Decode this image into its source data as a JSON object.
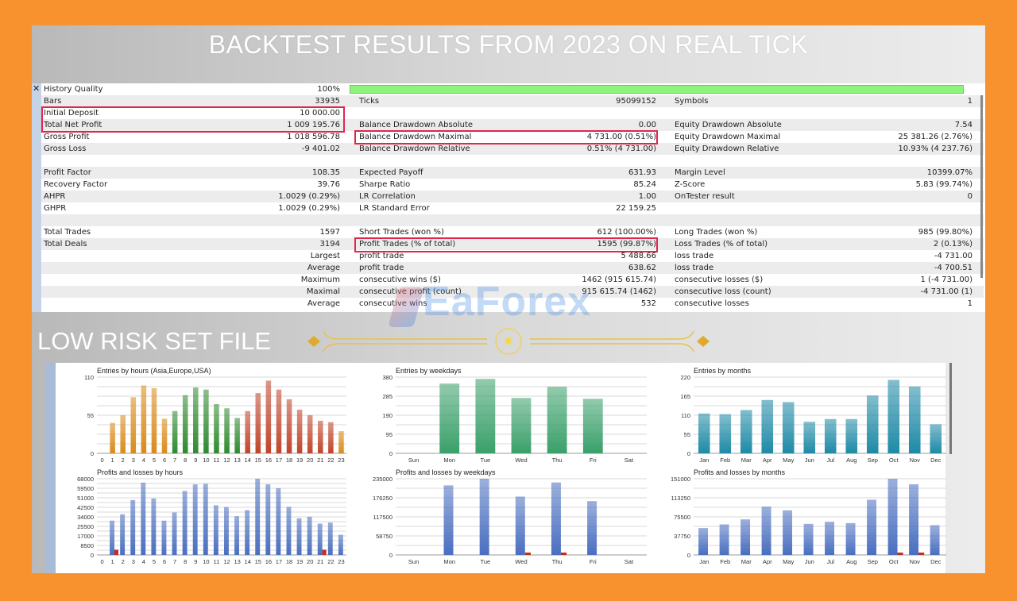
{
  "title": "BACKTEST RESULTS FROM 2023 ON REAL TICK",
  "section_label": "LOW RISK SET FILE",
  "watermark": "EaForex",
  "history_quality": {
    "label": "History Quality",
    "value": "100%",
    "fill_percent": 100
  },
  "rows": [
    {
      "l1": "History Quality",
      "v1": "100%"
    },
    {
      "l1": "Bars",
      "v1": "33935",
      "l2": "Ticks",
      "v2": "95099152",
      "l3": "Symbols",
      "v3": "1"
    },
    {
      "l1": "Initial Deposit",
      "v1": "10 000.00"
    },
    {
      "l1": "Total Net Profit",
      "v1": "1 009 195.76",
      "l2": "Balance Drawdown Absolute",
      "v2": "0.00",
      "l3": "Equity Drawdown Absolute",
      "v3": "7.54"
    },
    {
      "l1": "Gross Profit",
      "v1": "1 018 596.78",
      "l2": "Balance Drawdown Maximal",
      "v2": "4 731.00 (0.51%)",
      "l3": "Equity Drawdown Maximal",
      "v3": "25 381.26 (2.76%)"
    },
    {
      "l1": "Gross Loss",
      "v1": "-9 401.02",
      "l2": "Balance Drawdown Relative",
      "v2": "0.51% (4 731.00)",
      "l3": "Equity Drawdown Relative",
      "v3": "10.93% (4 237.76)"
    },
    {},
    {
      "l1": "Profit Factor",
      "v1": "108.35",
      "l2": "Expected Payoff",
      "v2": "631.93",
      "l3": "Margin Level",
      "v3": "10399.07%"
    },
    {
      "l1": "Recovery Factor",
      "v1": "39.76",
      "l2": "Sharpe Ratio",
      "v2": "85.24",
      "l3": "Z-Score",
      "v3": "5.83 (99.74%)"
    },
    {
      "l1": "AHPR",
      "v1": "1.0029 (0.29%)",
      "l2": "LR Correlation",
      "v2": "1.00",
      "l3": "OnTester result",
      "v3": "0"
    },
    {
      "l1": "GHPR",
      "v1": "1.0029 (0.29%)",
      "l2": "LR Standard Error",
      "v2": "22 159.25"
    },
    {},
    {
      "l1": "Total Trades",
      "v1": "1597",
      "l2": "Short Trades (won %)",
      "v2": "612 (100.00%)",
      "l3": "Long Trades (won %)",
      "v3": "985 (99.80%)"
    },
    {
      "l1": "Total Deals",
      "v1": "3194",
      "l2": "Profit Trades (% of total)",
      "v2": "1595 (99.87%)",
      "l3": "Loss Trades (% of total)",
      "v3": "2 (0.13%)"
    },
    {
      "v1": "Largest",
      "l2": "profit trade",
      "v2": "5 488.66",
      "l3": "loss trade",
      "v3": "-4 731.00"
    },
    {
      "v1": "Average",
      "l2": "profit trade",
      "v2": "638.62",
      "l3": "loss trade",
      "v3": "-4 700.51"
    },
    {
      "v1": "Maximum",
      "l2": "consecutive wins ($)",
      "v2": "1462 (915 615.74)",
      "l3": "consecutive losses ($)",
      "v3": "1 (-4 731.00)"
    },
    {
      "v1": "Maximal",
      "l2": "consecutive profit (count)",
      "v2": "915 615.74 (1462)",
      "l3": "consecutive loss (count)",
      "v3": "-4 731.00 (1)"
    },
    {
      "v1": "Average",
      "l2": "consecutive wins",
      "v2": "532",
      "l3": "consecutive losses",
      "v3": "1"
    }
  ],
  "colors": {
    "frame": "#f7922e",
    "highlight": "#e0264d",
    "quality_bar": "#8ef37a",
    "profit": "#4a6fc0",
    "loss": "#c0301c"
  },
  "chart_data": [
    {
      "type": "bar",
      "title": "Entries by hours (Asia,Europe,USA)",
      "categories": [
        "0",
        "1",
        "2",
        "3",
        "4",
        "5",
        "6",
        "7",
        "8",
        "9",
        "10",
        "11",
        "12",
        "13",
        "14",
        "15",
        "16",
        "17",
        "18",
        "19",
        "20",
        "21",
        "22",
        "23"
      ],
      "ylim": [
        0,
        110
      ],
      "yticks": [
        "0",
        "55",
        "110"
      ],
      "series": [
        {
          "name": "entries",
          "values": [
            0,
            44,
            55,
            81,
            98,
            94,
            50,
            61,
            84,
            95,
            92,
            71,
            65,
            51,
            61,
            87,
            105,
            92,
            78,
            63,
            55,
            47,
            45,
            32
          ],
          "colors": [
            "#d98b1a",
            "#d98b1a",
            "#d98b1a",
            "#d98b1a",
            "#d98b1a",
            "#d98b1a",
            "#d98b1a",
            "#2e8a2e",
            "#2e8a2e",
            "#2e8a2e",
            "#2e8a2e",
            "#2e8a2e",
            "#2e8a2e",
            "#2e8a2e",
            "#c0442a",
            "#c0442a",
            "#c0442a",
            "#c0442a",
            "#c0442a",
            "#c0442a",
            "#c0442a",
            "#c0442a",
            "#c0442a",
            "#d98b1a"
          ]
        }
      ]
    },
    {
      "type": "bar",
      "title": "Entries by weekdays",
      "categories": [
        "Sun",
        "Mon",
        "Tue",
        "Wed",
        "Thu",
        "Fri",
        "Sat"
      ],
      "ylim": [
        0,
        380
      ],
      "yticks": [
        "0",
        "95",
        "190",
        "285",
        "380"
      ],
      "series": [
        {
          "name": "entries",
          "values": [
            0,
            348,
            371,
            276,
            332,
            272,
            0
          ],
          "color": "#3aa06a"
        }
      ]
    },
    {
      "type": "bar",
      "title": "Entries by months",
      "categories": [
        "Jan",
        "Feb",
        "Mar",
        "Apr",
        "May",
        "Jun",
        "Jul",
        "Aug",
        "Sep",
        "Oct",
        "Nov",
        "Dec"
      ],
      "ylim": [
        0,
        220
      ],
      "yticks": [
        "0",
        "55",
        "110",
        "165",
        "220"
      ],
      "series": [
        {
          "name": "entries",
          "values": [
            115,
            113,
            125,
            154,
            148,
            91,
            99,
            99,
            167,
            212,
            193,
            84
          ],
          "color": "#1e8aa6"
        }
      ]
    },
    {
      "type": "bar",
      "title": "Profits and losses by hours",
      "categories": [
        "0",
        "1",
        "2",
        "3",
        "4",
        "5",
        "6",
        "7",
        "8",
        "9",
        "10",
        "11",
        "12",
        "13",
        "14",
        "15",
        "16",
        "17",
        "18",
        "19",
        "20",
        "21",
        "22",
        "23"
      ],
      "ylim": [
        0,
        68000
      ],
      "yticks": [
        "0",
        "8500",
        "17000",
        "25500",
        "34000",
        "42500",
        "51000",
        "59500",
        "68000"
      ],
      "series": [
        {
          "name": "profits",
          "color": "#4a6fc0",
          "values": [
            0,
            30600,
            36300,
            49000,
            64500,
            50400,
            30600,
            37900,
            57100,
            63000,
            63500,
            44300,
            42700,
            34600,
            40000,
            68000,
            63000,
            59500,
            42900,
            32700,
            34100,
            28000,
            28900,
            18000
          ]
        },
        {
          "name": "losses",
          "color": "#c0301c",
          "values": [
            0,
            4700,
            0,
            0,
            0,
            0,
            0,
            0,
            0,
            0,
            0,
            0,
            0,
            0,
            0,
            0,
            0,
            0,
            0,
            0,
            0,
            4700,
            0,
            0
          ]
        }
      ]
    },
    {
      "type": "bar",
      "title": "Profits and losses by weekdays",
      "categories": [
        "Sun",
        "Mon",
        "Tue",
        "Wed",
        "Thu",
        "Fri",
        "Sat"
      ],
      "ylim": [
        0,
        235000
      ],
      "yticks": [
        "0",
        "58750",
        "117500",
        "176250",
        "235000"
      ],
      "series": [
        {
          "name": "profits",
          "color": "#4a6fc0",
          "values": [
            0,
            214500,
            235000,
            180000,
            223500,
            166000,
            0
          ]
        },
        {
          "name": "losses",
          "color": "#c0301c",
          "values": [
            0,
            0,
            0,
            4700,
            4700,
            0,
            0
          ]
        }
      ]
    },
    {
      "type": "bar",
      "title": "Profits and losses by months",
      "categories": [
        "Jan",
        "Feb",
        "Mar",
        "Apr",
        "May",
        "Jun",
        "Jul",
        "Aug",
        "Sep",
        "Oct",
        "Nov",
        "Dec"
      ],
      "ylim": [
        0,
        151000
      ],
      "yticks": [
        "0",
        "37750",
        "75500",
        "113250",
        "151000"
      ],
      "series": [
        {
          "name": "profits",
          "color": "#4a6fc0",
          "values": [
            53300,
            60600,
            70500,
            95800,
            88400,
            61600,
            65800,
            63100,
            109400,
            151000,
            140000,
            58900
          ]
        },
        {
          "name": "losses",
          "color": "#c0301c",
          "values": [
            0,
            0,
            0,
            0,
            0,
            0,
            0,
            0,
            0,
            4700,
            4700,
            0
          ]
        }
      ]
    }
  ]
}
